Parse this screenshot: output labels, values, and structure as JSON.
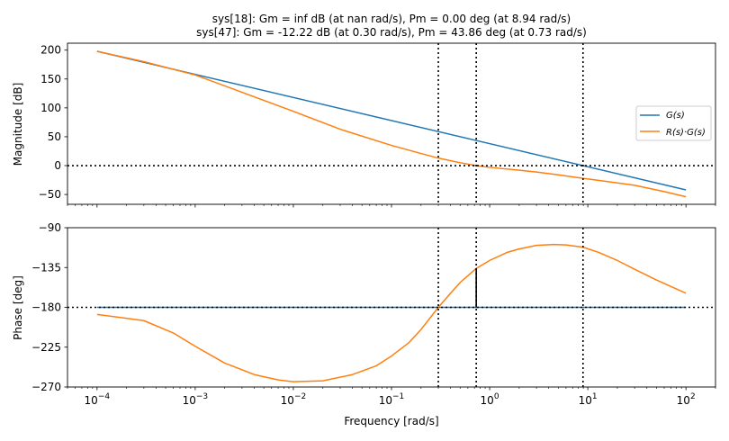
{
  "title": {
    "line1": "sys[18]: Gm = inf dB (at nan rad/s), Pm = 0.00 deg (at 8.94 rad/s)",
    "line2": "sys[47]: Gm = -12.22 dB (at 0.30 rad/s), Pm = 43.86 deg (at 0.73 rad/s)"
  },
  "xlabel": "Frequency [rad/s]",
  "colors": {
    "g": "#1f77b4",
    "rg": "#ff7f0e",
    "marker": "#000000"
  },
  "chart_data": [
    {
      "type": "line",
      "panel": "magnitude",
      "ylabel": "Magnitude [dB]",
      "xscale": "log",
      "ylim": [
        -67,
        212
      ],
      "yticks": [
        -50,
        0,
        50,
        100,
        150,
        200
      ],
      "ytick_labels": [
        "−50",
        "0",
        "50",
        "100",
        "150",
        "200"
      ],
      "xlim": [
        5e-05,
        200
      ],
      "xticks": [
        0.0001,
        0.001,
        0.01,
        0.1,
        1,
        10,
        100
      ],
      "legend": {
        "location": "center-right",
        "entries": [
          "G(s)",
          "R(s)·G(s)"
        ]
      },
      "series": [
        {
          "name": "G(s)",
          "color": "#1f77b4",
          "x": [
            0.0001,
            100
          ],
          "y": [
            198,
            -42
          ]
        },
        {
          "name": "R(s)·G(s)",
          "color": "#ff7f0e",
          "x": [
            0.0001,
            0.0003,
            0.001,
            0.003,
            0.01,
            0.03,
            0.1,
            0.2,
            0.3,
            0.5,
            0.73,
            1,
            2,
            3,
            5,
            8.94,
            15,
            30,
            60,
            100
          ],
          "y": [
            198,
            180,
            157,
            127,
            94,
            63,
            35,
            21,
            13,
            5,
            0,
            -3,
            -8,
            -11,
            -16,
            -22,
            -27,
            -34,
            -45,
            -54
          ]
        }
      ],
      "reference_lines": {
        "horizontal": [
          0
        ],
        "vertical": [
          0.3,
          0.73,
          8.94
        ]
      }
    },
    {
      "type": "line",
      "panel": "phase",
      "ylabel": "Phase [deg]",
      "xlabel": "Frequency [rad/s]",
      "xscale": "log",
      "ylim": [
        -270,
        -90
      ],
      "yticks": [
        -270,
        -225,
        -180,
        -135,
        -90
      ],
      "ytick_labels": [
        "−270",
        "−225",
        "−180",
        "−135",
        "−90"
      ],
      "xlim": [
        5e-05,
        200
      ],
      "xticks": [
        0.0001,
        0.001,
        0.01,
        0.1,
        1,
        10,
        100
      ],
      "xtick_labels": [
        {
          "base": "10",
          "exp": "−4"
        },
        {
          "base": "10",
          "exp": "−3"
        },
        {
          "base": "10",
          "exp": "−2"
        },
        {
          "base": "10",
          "exp": "−1"
        },
        {
          "base": "10",
          "exp": "0"
        },
        {
          "base": "10",
          "exp": "1"
        },
        {
          "base": "10",
          "exp": "2"
        }
      ],
      "series": [
        {
          "name": "G(s)",
          "color": "#1f77b4",
          "x": [
            0.0001,
            100
          ],
          "y": [
            -180,
            -180
          ]
        },
        {
          "name": "R(s)·G(s)",
          "color": "#ff7f0e",
          "x": [
            0.0001,
            0.0003,
            0.0006,
            0.001,
            0.002,
            0.004,
            0.007,
            0.01,
            0.02,
            0.04,
            0.07,
            0.1,
            0.15,
            0.2,
            0.3,
            0.4,
            0.5,
            0.73,
            1,
            1.5,
            2,
            3,
            4.5,
            6,
            8.94,
            13,
            20,
            30,
            50,
            100
          ],
          "y": [
            -188,
            -195,
            -209,
            -224,
            -243,
            -256,
            -262,
            -264,
            -263,
            -256,
            -246,
            -235,
            -220,
            -205,
            -180,
            -164,
            -152,
            -136,
            -127,
            -118,
            -114,
            -110,
            -109,
            -109.5,
            -112,
            -118,
            -127,
            -137,
            -149,
            -164
          ]
        }
      ],
      "reference_lines": {
        "horizontal": [
          -180
        ],
        "vertical": [
          0.3,
          0.73,
          8.94
        ]
      },
      "margin_marker": {
        "x": 0.73,
        "y_from": -180,
        "y_to": -136.14
      }
    }
  ]
}
